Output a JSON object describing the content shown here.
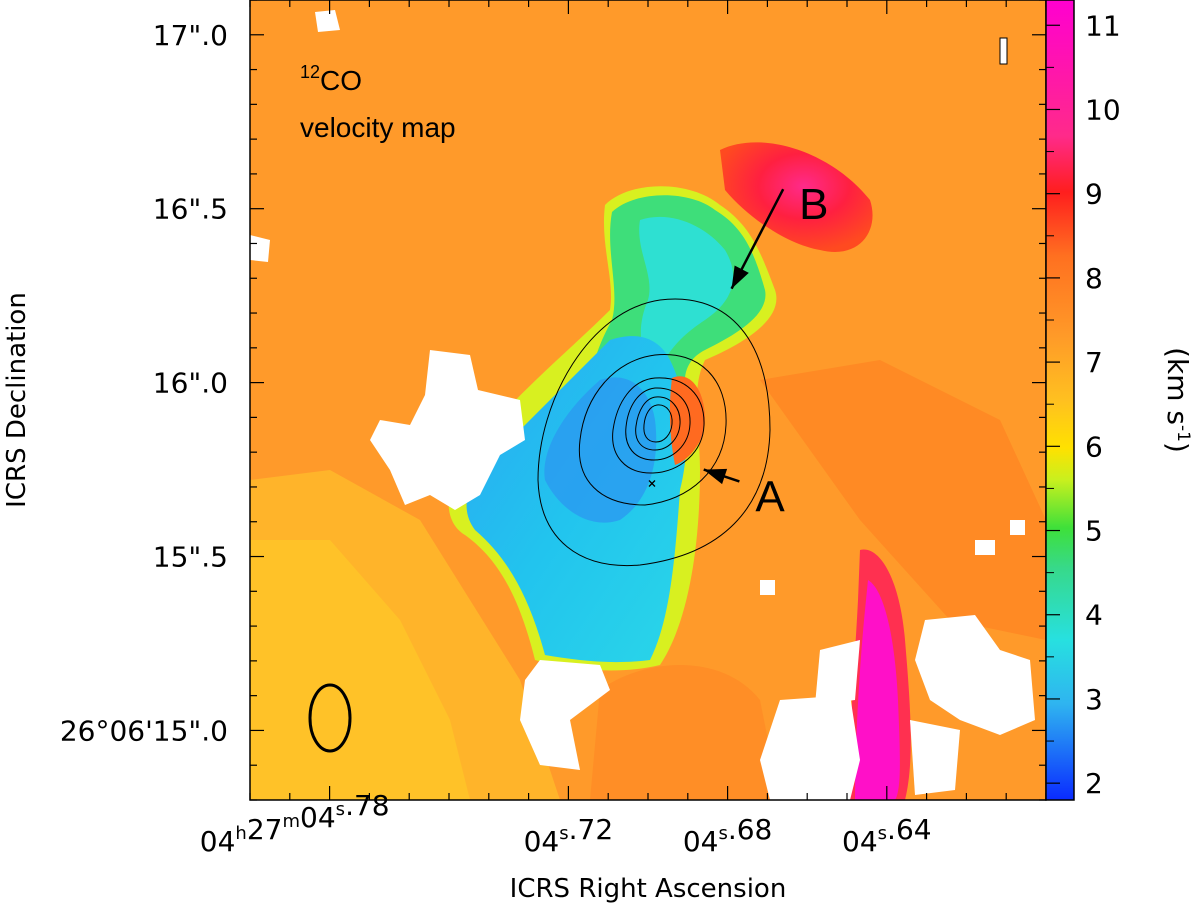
{
  "chart_data": {
    "type": "heatmap",
    "title": "velocity map",
    "title_superscript": "12",
    "title_species": "CO",
    "xlabel": "ICRS Right Ascension",
    "ylabel": "ICRS Declination",
    "colorbar_label": "(km s",
    "colorbar_label_sup": "-1",
    "colorbar_label_close": ")",
    "colorbar_range": [
      1.8,
      11.3
    ],
    "colorbar_ticks": [
      {
        "value": 2,
        "label": "2"
      },
      {
        "value": 3,
        "label": "3"
      },
      {
        "value": 4,
        "label": "4"
      },
      {
        "value": 5,
        "label": "5"
      },
      {
        "value": 6,
        "label": "6"
      },
      {
        "value": 7,
        "label": "7"
      },
      {
        "value": 8,
        "label": "8"
      },
      {
        "value": 9,
        "label": "9"
      },
      {
        "value": 10,
        "label": "10"
      },
      {
        "value": 11,
        "label": "11"
      }
    ],
    "colormap": [
      "#0a2bff",
      "#2fb4f0",
      "#27e0e0",
      "#37d98a",
      "#3ee03a",
      "#c8f01e",
      "#ffe100",
      "#ffc020",
      "#ff9a28",
      "#ff7020",
      "#ff1e1e",
      "#ff2a8a",
      "#ff00d0"
    ],
    "x_ticks": [
      {
        "value": 4.78,
        "prefix": "04",
        "h": "h",
        "mid": "27",
        "m": "m",
        "sec": "04",
        "s": "s",
        "frac": ".78"
      },
      {
        "value": 4.72,
        "prefix": "",
        "h": "",
        "mid": "",
        "m": "",
        "sec": "04",
        "s": "s",
        "frac": ".72"
      },
      {
        "value": 4.68,
        "prefix": "",
        "h": "",
        "mid": "",
        "m": "",
        "sec": "04",
        "s": "s",
        "frac": ".68"
      },
      {
        "value": 4.64,
        "prefix": "",
        "h": "",
        "mid": "",
        "m": "",
        "sec": "04",
        "s": "s",
        "frac": ".64"
      }
    ],
    "x_range": [
      4.8,
      4.6
    ],
    "y_range": [
      14.8,
      17.1
    ],
    "y_ticks": [
      {
        "value": 17.0,
        "label": "17\".0"
      },
      {
        "value": 16.5,
        "label": "16\".5"
      },
      {
        "value": 16.0,
        "label": "16\".0"
      },
      {
        "value": 15.5,
        "label": "15\".5"
      },
      {
        "value": 15.0,
        "label": "26°06'15\".0"
      }
    ],
    "annotations": [
      {
        "label": "A",
        "text_at": [
          4.67,
          15.67
        ],
        "arrow_to": [
          4.686,
          15.75
        ]
      },
      {
        "label": "B",
        "text_at": [
          4.659,
          16.51
        ],
        "arrow_to": [
          4.679,
          16.27
        ]
      }
    ],
    "source_center": [
      4.699,
      15.71
    ],
    "background_velocity": 7.6,
    "features": [
      {
        "name": "blue-lobe",
        "velocity": 3.0
      },
      {
        "name": "green-arm",
        "velocity": 4.3
      },
      {
        "name": "red-blob-north",
        "velocity": 9.3
      },
      {
        "name": "magenta-streak",
        "velocity": 10.8
      }
    ]
  }
}
